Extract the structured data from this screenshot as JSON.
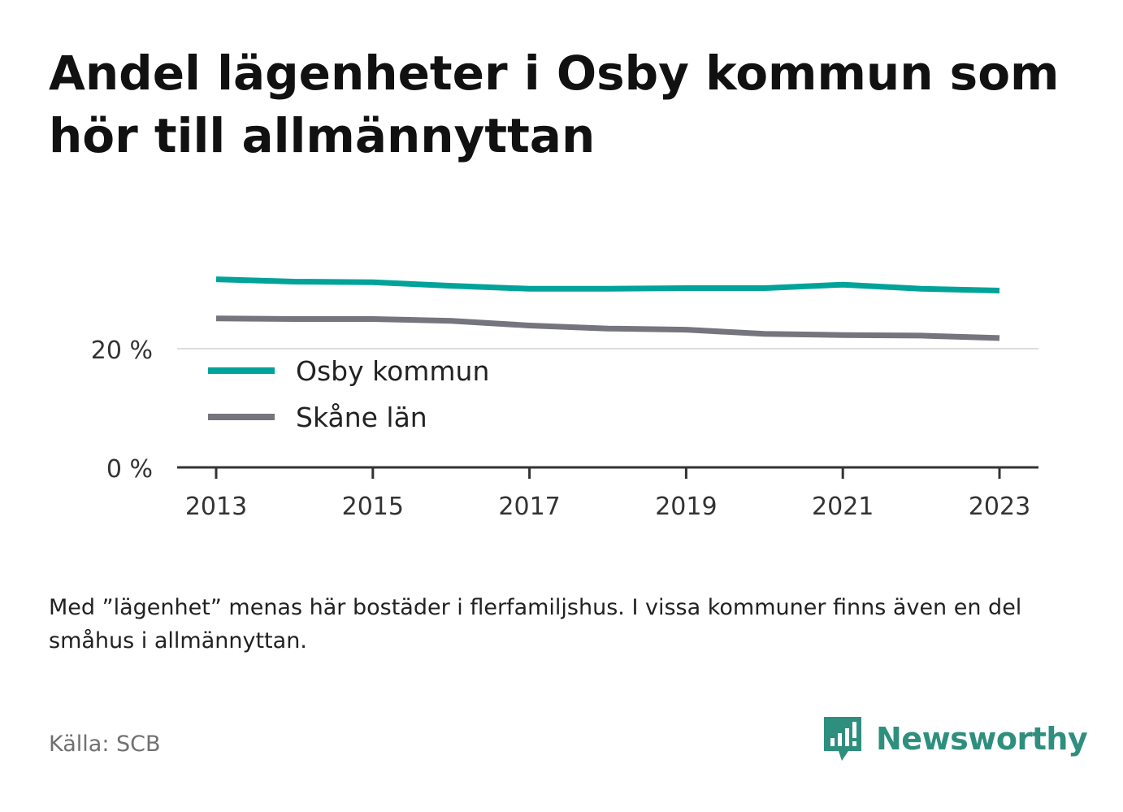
{
  "header": {
    "title": "Andel lägenheter i Osby kommun som hör till allmännyttan"
  },
  "chart_data": {
    "type": "line",
    "x": [
      2013,
      2014,
      2015,
      2016,
      2017,
      2018,
      2019,
      2020,
      2021,
      2022,
      2023
    ],
    "series": [
      {
        "name": "Osby kommun",
        "color": "#00a39a",
        "values": [
          31.7,
          31.3,
          31.2,
          30.6,
          30.1,
          30.1,
          30.2,
          30.2,
          30.8,
          30.1,
          29.8
        ]
      },
      {
        "name": "Skåne län",
        "color": "#75757e",
        "values": [
          25.1,
          25.0,
          25.0,
          24.7,
          23.9,
          23.4,
          23.2,
          22.5,
          22.3,
          22.2,
          21.8
        ]
      }
    ],
    "yticks": [
      {
        "value": 0,
        "label": "0 %"
      },
      {
        "value": 20,
        "label": "20 %"
      }
    ],
    "xticks": [
      2013,
      2015,
      2017,
      2019,
      2021,
      2023
    ],
    "ylim": [
      0,
      35
    ],
    "grid": true,
    "legend": "bottom-left"
  },
  "footer": {
    "note": "Med ”lägenhet” menas här bostäder i flerfamiljshus. I vissa kommuner finns även en del småhus i allmännyttan.",
    "source": "Källa: SCB",
    "brand": "Newsworthy",
    "brand_color": "#2f8f7e"
  }
}
